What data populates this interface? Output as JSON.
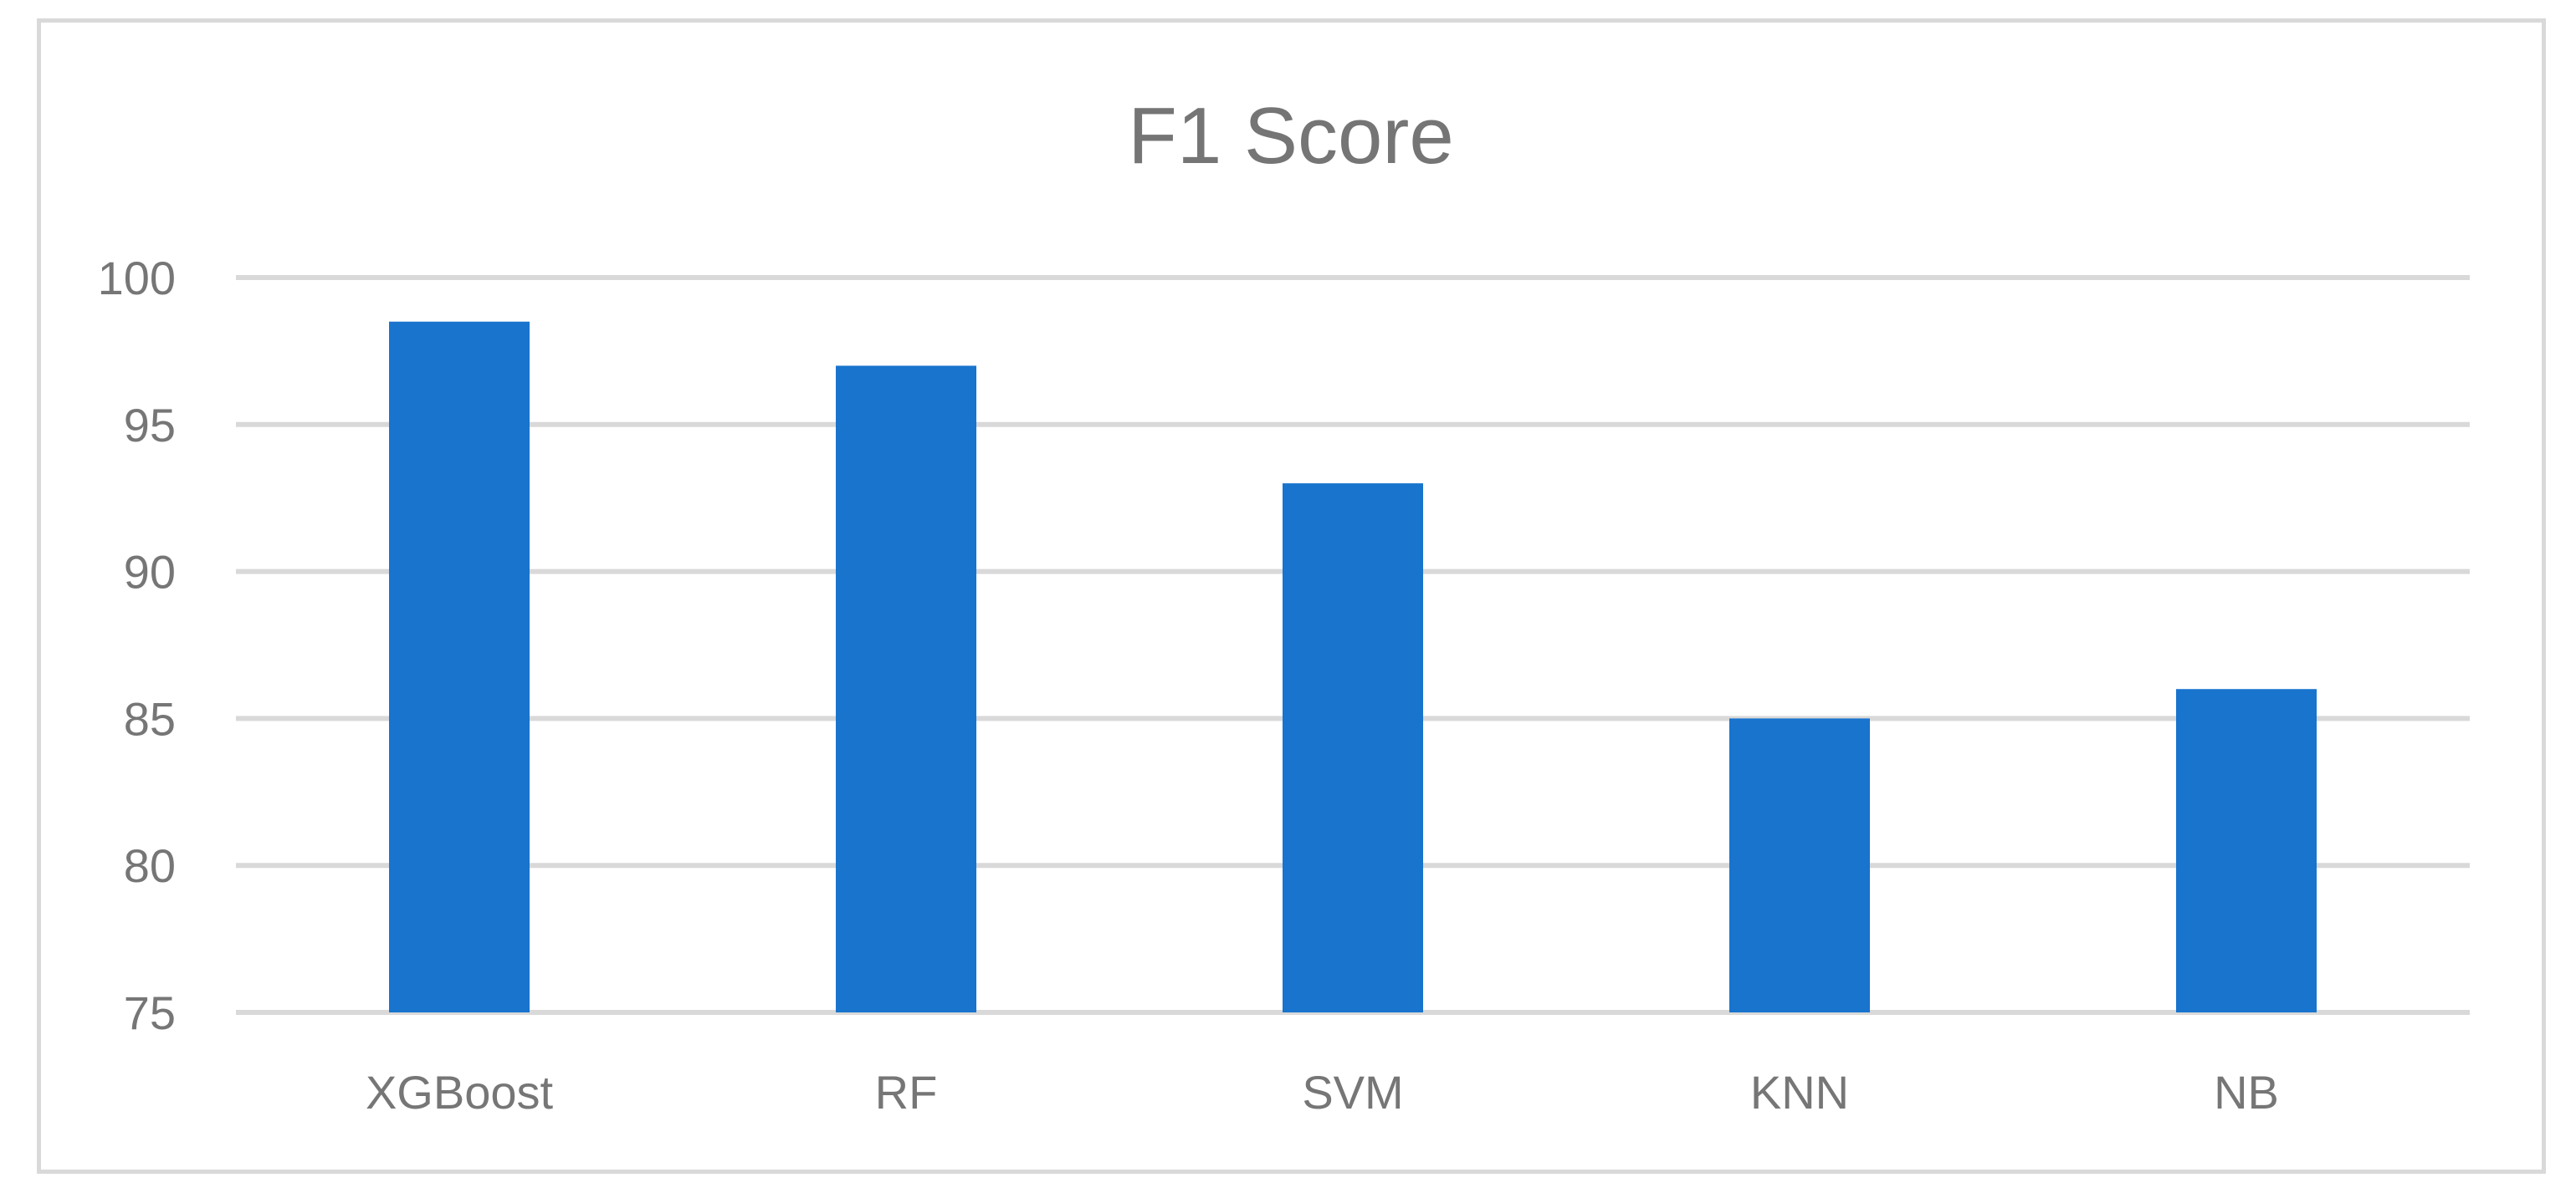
{
  "chart_data": {
    "type": "bar",
    "title": "F1 Score",
    "xlabel": "",
    "ylabel": "",
    "categories": [
      "XGBoost",
      "RF",
      "SVM",
      "KNN",
      "NB"
    ],
    "values": [
      98.5,
      97,
      93,
      85,
      86
    ],
    "ylim": [
      75,
      100
    ],
    "yticks": [
      75,
      80,
      85,
      90,
      95,
      100
    ],
    "grid": true,
    "legend": "none",
    "colors": {
      "bar": "#1874cd",
      "grid": "#d9d9d9",
      "text": "#767676"
    }
  }
}
